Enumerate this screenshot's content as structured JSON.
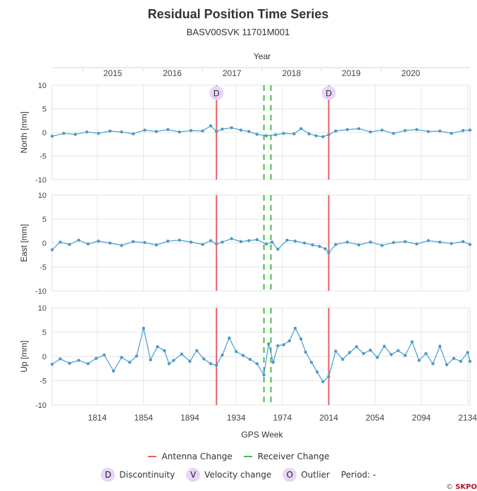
{
  "chart_data": {
    "type": "scatter",
    "title": "Residual Position Time Series",
    "subtitle": "BASV00SVK 11701M001",
    "top_axis_label": "Year",
    "year_ticks": [
      "2015",
      "2016",
      "2017",
      "2018",
      "2019",
      "2020"
    ],
    "xlabel": "GPS Week",
    "xlim": [
      1775,
      2136
    ],
    "x_ticks": [
      1814,
      1854,
      1894,
      1934,
      1974,
      2014,
      2054,
      2094,
      2134
    ],
    "antenna_changes": [
      1917,
      2014
    ],
    "receiver_changes": [
      1958,
      1964
    ],
    "discontinuities": [
      1917,
      2014
    ],
    "panels": [
      {
        "name": "North",
        "ylabel": "North [mm]",
        "ylim": [
          -10,
          10
        ],
        "yticks": [
          10,
          5,
          0,
          -5,
          -10
        ],
        "x": [
          1775,
          1785,
          1795,
          1805,
          1815,
          1825,
          1835,
          1845,
          1855,
          1865,
          1875,
          1885,
          1895,
          1905,
          1912,
          1917,
          1922,
          1930,
          1938,
          1945,
          1952,
          1960,
          1968,
          1975,
          1984,
          1990,
          1997,
          2003,
          2009,
          2014,
          2020,
          2030,
          2040,
          2050,
          2060,
          2070,
          2080,
          2090,
          2100,
          2110,
          2120,
          2130,
          2136
        ],
        "y": [
          -0.8,
          -0.2,
          -0.4,
          0.1,
          -0.2,
          0.3,
          0.1,
          -0.3,
          0.5,
          0.2,
          0.6,
          0.1,
          0.4,
          0.3,
          1.4,
          0.2,
          0.7,
          1.0,
          0.5,
          0.2,
          -0.4,
          -0.7,
          -0.5,
          -0.2,
          -0.3,
          0.8,
          -0.3,
          -0.7,
          -0.9,
          -0.5,
          0.3,
          0.6,
          0.8,
          0.1,
          0.5,
          -0.2,
          0.4,
          0.6,
          0.2,
          0.3,
          -0.2,
          0.4,
          0.5
        ]
      },
      {
        "name": "East",
        "ylabel": "East [mm]",
        "ylim": [
          -10,
          10
        ],
        "yticks": [
          10,
          5,
          0,
          -5,
          -10
        ],
        "x": [
          1775,
          1782,
          1790,
          1798,
          1806,
          1815,
          1825,
          1835,
          1845,
          1855,
          1865,
          1875,
          1885,
          1895,
          1905,
          1912,
          1917,
          1922,
          1930,
          1938,
          1945,
          1952,
          1960,
          1965,
          1970,
          1978,
          1985,
          1993,
          2000,
          2006,
          2011,
          2014,
          2020,
          2030,
          2040,
          2050,
          2060,
          2070,
          2080,
          2090,
          2100,
          2110,
          2120,
          2130,
          2136
        ],
        "y": [
          -1.4,
          0.2,
          -0.3,
          0.6,
          -0.2,
          0.4,
          0.0,
          -0.5,
          0.3,
          0.1,
          -0.4,
          0.4,
          0.6,
          0.2,
          -0.3,
          0.5,
          -0.2,
          0.2,
          0.9,
          0.3,
          0.5,
          0.7,
          -0.2,
          0.2,
          -1.3,
          0.6,
          0.4,
          0.0,
          -0.4,
          -0.7,
          -1.2,
          -2.0,
          -0.3,
          0.2,
          -0.4,
          0.2,
          -0.5,
          0.1,
          0.3,
          -0.2,
          0.5,
          0.2,
          -0.1,
          0.3,
          -0.3
        ]
      },
      {
        "name": "Up",
        "ylabel": "Up [mm]",
        "ylim": [
          -10,
          10
        ],
        "yticks": [
          10,
          5,
          0,
          -5,
          -10
        ],
        "x": [
          1775,
          1782,
          1790,
          1798,
          1806,
          1813,
          1820,
          1828,
          1835,
          1842,
          1848,
          1854,
          1860,
          1866,
          1872,
          1876,
          1880,
          1887,
          1894,
          1900,
          1906,
          1912,
          1917,
          1922,
          1928,
          1934,
          1940,
          1946,
          1952,
          1958,
          1962,
          1966,
          1970,
          1975,
          1980,
          1985,
          1990,
          1994,
          1999,
          2004,
          2009,
          2014,
          2020,
          2026,
          2032,
          2038,
          2044,
          2050,
          2056,
          2062,
          2068,
          2074,
          2080,
          2086,
          2092,
          2098,
          2104,
          2110,
          2116,
          2122,
          2128,
          2134,
          2136
        ],
        "y": [
          -1.6,
          -0.5,
          -1.4,
          -0.8,
          -1.5,
          -0.4,
          0.3,
          -3.0,
          -0.2,
          -1.2,
          0.1,
          5.8,
          -0.7,
          2.0,
          1.2,
          -1.5,
          -0.8,
          0.5,
          -1.0,
          1.2,
          -0.5,
          -1.5,
          -1.8,
          0.3,
          3.8,
          1.0,
          0.2,
          -0.6,
          -1.5,
          -3.8,
          2.6,
          -1.2,
          2.2,
          2.4,
          3.2,
          5.8,
          3.6,
          0.9,
          -1.2,
          -3.2,
          -5.2,
          -4.1,
          1.1,
          -0.6,
          0.8,
          2.0,
          0.6,
          1.3,
          -0.2,
          2.1,
          0.4,
          1.2,
          0.2,
          3.0,
          -0.8,
          0.6,
          -1.5,
          2.1,
          -1.7,
          -0.4,
          -1.0,
          0.8,
          -1.0
        ]
      }
    ],
    "legend": {
      "antenna_label": "Antenna Change",
      "receiver_label": "Receiver Change",
      "badges": [
        {
          "letter": "D",
          "label": "Discontinuity"
        },
        {
          "letter": "V",
          "label": "Velocity change"
        },
        {
          "letter": "O",
          "label": "Outlier"
        }
      ],
      "period_label": "Period: -"
    },
    "colors": {
      "series": "#4a9cc9",
      "antenna": "#e85f5f",
      "receiver": "#4cb84c",
      "badge_bg": "#e9d5f7",
      "grid": "#e6e6e6"
    },
    "grid": true
  },
  "copyright": {
    "prefix": "©",
    "brand": "SKPO"
  }
}
